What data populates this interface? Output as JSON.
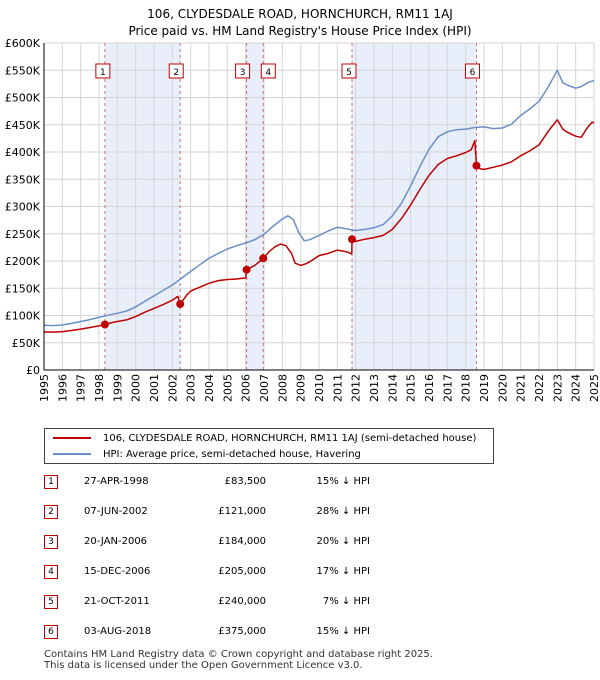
{
  "chart_data": {
    "type": "line",
    "title": "106, CLYDESDALE ROAD, HORNCHURCH, RM11 1AJ",
    "subtitle": "Price paid vs. HM Land Registry's House Price Index (HPI)",
    "xlim": [
      1995,
      2025
    ],
    "ylim": [
      0,
      600000
    ],
    "x_ticks": [
      "1995",
      "1996",
      "1997",
      "1998",
      "1999",
      "2000",
      "2001",
      "2002",
      "2003",
      "2004",
      "2005",
      "2006",
      "2007",
      "2008",
      "2009",
      "2010",
      "2011",
      "2012",
      "2013",
      "2014",
      "2015",
      "2016",
      "2017",
      "2018",
      "2019",
      "2020",
      "2021",
      "2022",
      "2023",
      "2024",
      "2025"
    ],
    "y_ticks": [
      {
        "value": 0,
        "label": "£0"
      },
      {
        "value": 50000,
        "label": "£50K"
      },
      {
        "value": 100000,
        "label": "£100K"
      },
      {
        "value": 150000,
        "label": "£150K"
      },
      {
        "value": 200000,
        "label": "£200K"
      },
      {
        "value": 250000,
        "label": "£250K"
      },
      {
        "value": 300000,
        "label": "£300K"
      },
      {
        "value": 350000,
        "label": "£350K"
      },
      {
        "value": 400000,
        "label": "£400K"
      },
      {
        "value": 450000,
        "label": "£450K"
      },
      {
        "value": 500000,
        "label": "£500K"
      },
      {
        "value": 550000,
        "label": "£550K"
      },
      {
        "value": 600000,
        "label": "£600K"
      }
    ],
    "grid": true,
    "shaded_periods": [
      [
        1998.32,
        2002.43
      ],
      [
        2006.05,
        2006.96
      ],
      [
        2011.8,
        2018.59
      ]
    ],
    "series": [
      {
        "name": "106, CLYDESDALE ROAD, HORNCHURCH, RM11 1AJ (semi-detached house)",
        "color": "#c00000",
        "x": [
          1995.0,
          1995.5,
          1996.0,
          1996.5,
          1997.0,
          1997.5,
          1998.0,
          1998.32,
          1998.7,
          1999.0,
          1999.5,
          2000.0,
          2000.5,
          2001.0,
          2001.5,
          2002.0,
          2002.3,
          2002.43,
          2002.8,
          2003.0,
          2003.5,
          2004.0,
          2004.5,
          2005.0,
          2005.5,
          2006.0,
          2006.05,
          2006.5,
          2006.96,
          2007.3,
          2007.6,
          2007.9,
          2008.2,
          2008.5,
          2008.7,
          2009.0,
          2009.3,
          2009.6,
          2010.0,
          2010.5,
          2011.0,
          2011.5,
          2011.79,
          2011.8,
          2012.0,
          2012.5,
          2013.0,
          2013.5,
          2014.0,
          2014.5,
          2015.0,
          2015.5,
          2016.0,
          2016.5,
          2017.0,
          2017.5,
          2018.0,
          2018.3,
          2018.5,
          2018.59,
          2018.8,
          2019.0,
          2019.5,
          2020.0,
          2020.5,
          2021.0,
          2021.5,
          2022.0,
          2022.5,
          2023.0,
          2023.3,
          2023.5,
          2024.0,
          2024.3,
          2024.6,
          2024.9,
          2025.0
        ],
        "values": [
          70000,
          69500,
          70500,
          72500,
          75000,
          78000,
          81000,
          83500,
          87000,
          89000,
          92000,
          98000,
          106000,
          113000,
          120000,
          128000,
          135000,
          121000,
          138000,
          145000,
          152000,
          159000,
          164000,
          166000,
          167000,
          169000,
          184000,
          192000,
          205000,
          218000,
          226000,
          231000,
          228000,
          214000,
          196000,
          192000,
          195000,
          201000,
          210000,
          214000,
          220000,
          217000,
          213000,
          240000,
          236000,
          240000,
          243000,
          247000,
          258000,
          278000,
          303000,
          331000,
          357000,
          377000,
          388000,
          393000,
          399000,
          404000,
          421000,
          375000,
          369000,
          368000,
          372000,
          376000,
          382000,
          393000,
          402000,
          413000,
          438000,
          459000,
          442000,
          437000,
          429000,
          427000,
          443000,
          455000,
          453000
        ]
      },
      {
        "name": "HPI: Average price, semi-detached house, Havering",
        "color": "#6b8fc7",
        "x": [
          1995.0,
          1995.5,
          1996.0,
          1996.5,
          1997.0,
          1997.5,
          1998.0,
          1998.5,
          1999.0,
          1999.5,
          2000.0,
          2000.5,
          2001.0,
          2001.5,
          2002.0,
          2002.5,
          2003.0,
          2003.5,
          2004.0,
          2004.5,
          2005.0,
          2005.5,
          2006.0,
          2006.5,
          2007.0,
          2007.5,
          2008.0,
          2008.3,
          2008.6,
          2008.9,
          2009.2,
          2009.5,
          2010.0,
          2010.5,
          2011.0,
          2011.5,
          2012.0,
          2012.5,
          2013.0,
          2013.5,
          2014.0,
          2014.5,
          2015.0,
          2015.5,
          2016.0,
          2016.5,
          2017.0,
          2017.5,
          2018.0,
          2018.5,
          2019.0,
          2019.5,
          2020.0,
          2020.5,
          2021.0,
          2021.5,
          2022.0,
          2022.5,
          2023.0,
          2023.3,
          2023.6,
          2024.0,
          2024.3,
          2024.7,
          2025.0
        ],
        "values": [
          82000,
          81500,
          82500,
          85500,
          89000,
          92500,
          96500,
          100500,
          104000,
          108000,
          116000,
          126000,
          136000,
          146000,
          156000,
          168000,
          181000,
          193000,
          205000,
          214000,
          222000,
          228000,
          233000,
          239000,
          249000,
          264000,
          277000,
          283000,
          276000,
          252000,
          237000,
          239000,
          247000,
          255000,
          262000,
          259000,
          256000,
          258000,
          261000,
          267000,
          283000,
          306000,
          338000,
          373000,
          405000,
          428000,
          437000,
          441000,
          442000,
          445000,
          446000,
          443000,
          444000,
          451000,
          467000,
          479000,
          493000,
          519000,
          550000,
          527000,
          522000,
          517000,
          520000,
          528000,
          531000
        ]
      }
    ],
    "sales": [
      {
        "label": "1",
        "x": 1998.32,
        "price": 83500
      },
      {
        "label": "2",
        "x": 2002.43,
        "price": 121000
      },
      {
        "label": "3",
        "x": 2006.05,
        "price": 184000
      },
      {
        "label": "4",
        "x": 2006.96,
        "price": 205000
      },
      {
        "label": "5",
        "x": 2011.8,
        "price": 240000
      },
      {
        "label": "6",
        "x": 2018.59,
        "price": 375000
      }
    ]
  },
  "legend": {
    "property": "106, CLYDESDALE ROAD, HORNCHURCH, RM11 1AJ (semi-detached house)",
    "hpi": "HPI: Average price, semi-detached house, Havering"
  },
  "table": [
    {
      "num": "1",
      "date": "27-APR-1998",
      "price": "£83,500",
      "hpi": "15% ↓ HPI"
    },
    {
      "num": "2",
      "date": "07-JUN-2002",
      "price": "£121,000",
      "hpi": "28% ↓ HPI"
    },
    {
      "num": "3",
      "date": "20-JAN-2006",
      "price": "£184,000",
      "hpi": "20% ↓ HPI"
    },
    {
      "num": "4",
      "date": "15-DEC-2006",
      "price": "£205,000",
      "hpi": "17% ↓ HPI"
    },
    {
      "num": "5",
      "date": "21-OCT-2011",
      "price": "£240,000",
      "hpi": "7% ↓ HPI"
    },
    {
      "num": "6",
      "date": "03-AUG-2018",
      "price": "£375,000",
      "hpi": "15% ↓ HPI"
    }
  ],
  "footer": {
    "line1": "Contains HM Land Registry data © Crown copyright and database right 2025.",
    "line2": "This data is licensed under the Open Government Licence v3.0."
  }
}
